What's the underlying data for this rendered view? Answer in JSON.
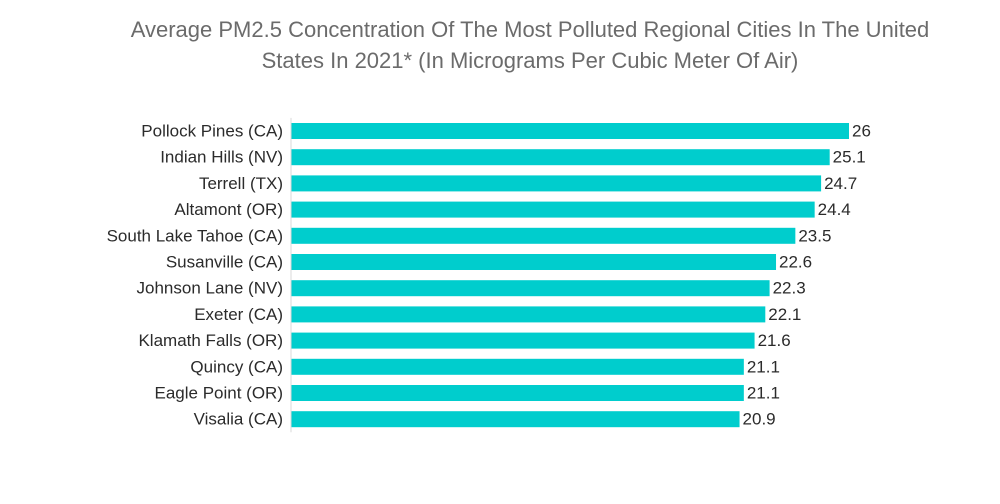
{
  "chart_data": {
    "type": "bar",
    "orientation": "horizontal",
    "title_line1": "Average PM2.5 Concentration Of The Most Polluted Regional Cities In The United",
    "title_line2": "States In 2021* (In Micrograms Per Cubic Meter Of Air)",
    "xlabel": "",
    "ylabel": "",
    "grid": false,
    "legend": "none",
    "bar_color": "#00cdcd",
    "categories": [
      "Pollock Pines (CA)",
      "Indian Hills (NV)",
      "Terrell (TX)",
      "Altamont (OR)",
      "South Lake Tahoe (CA)",
      "Susanville (CA)",
      "Johnson Lane (NV)",
      "Exeter (CA)",
      "Klamath Falls (OR)",
      "Quincy (CA)",
      "Eagle Point (OR)",
      "Visalia (CA)"
    ],
    "values": [
      26,
      25.1,
      24.7,
      24.4,
      23.5,
      22.6,
      22.3,
      22.1,
      21.6,
      21.1,
      21.1,
      20.9
    ],
    "value_labels": [
      "26",
      "25.1",
      "24.7",
      "24.4",
      "23.5",
      "22.6",
      "22.3",
      "22.1",
      "21.6",
      "21.1",
      "21.1",
      "20.9"
    ],
    "xlim": [
      0,
      26
    ]
  }
}
